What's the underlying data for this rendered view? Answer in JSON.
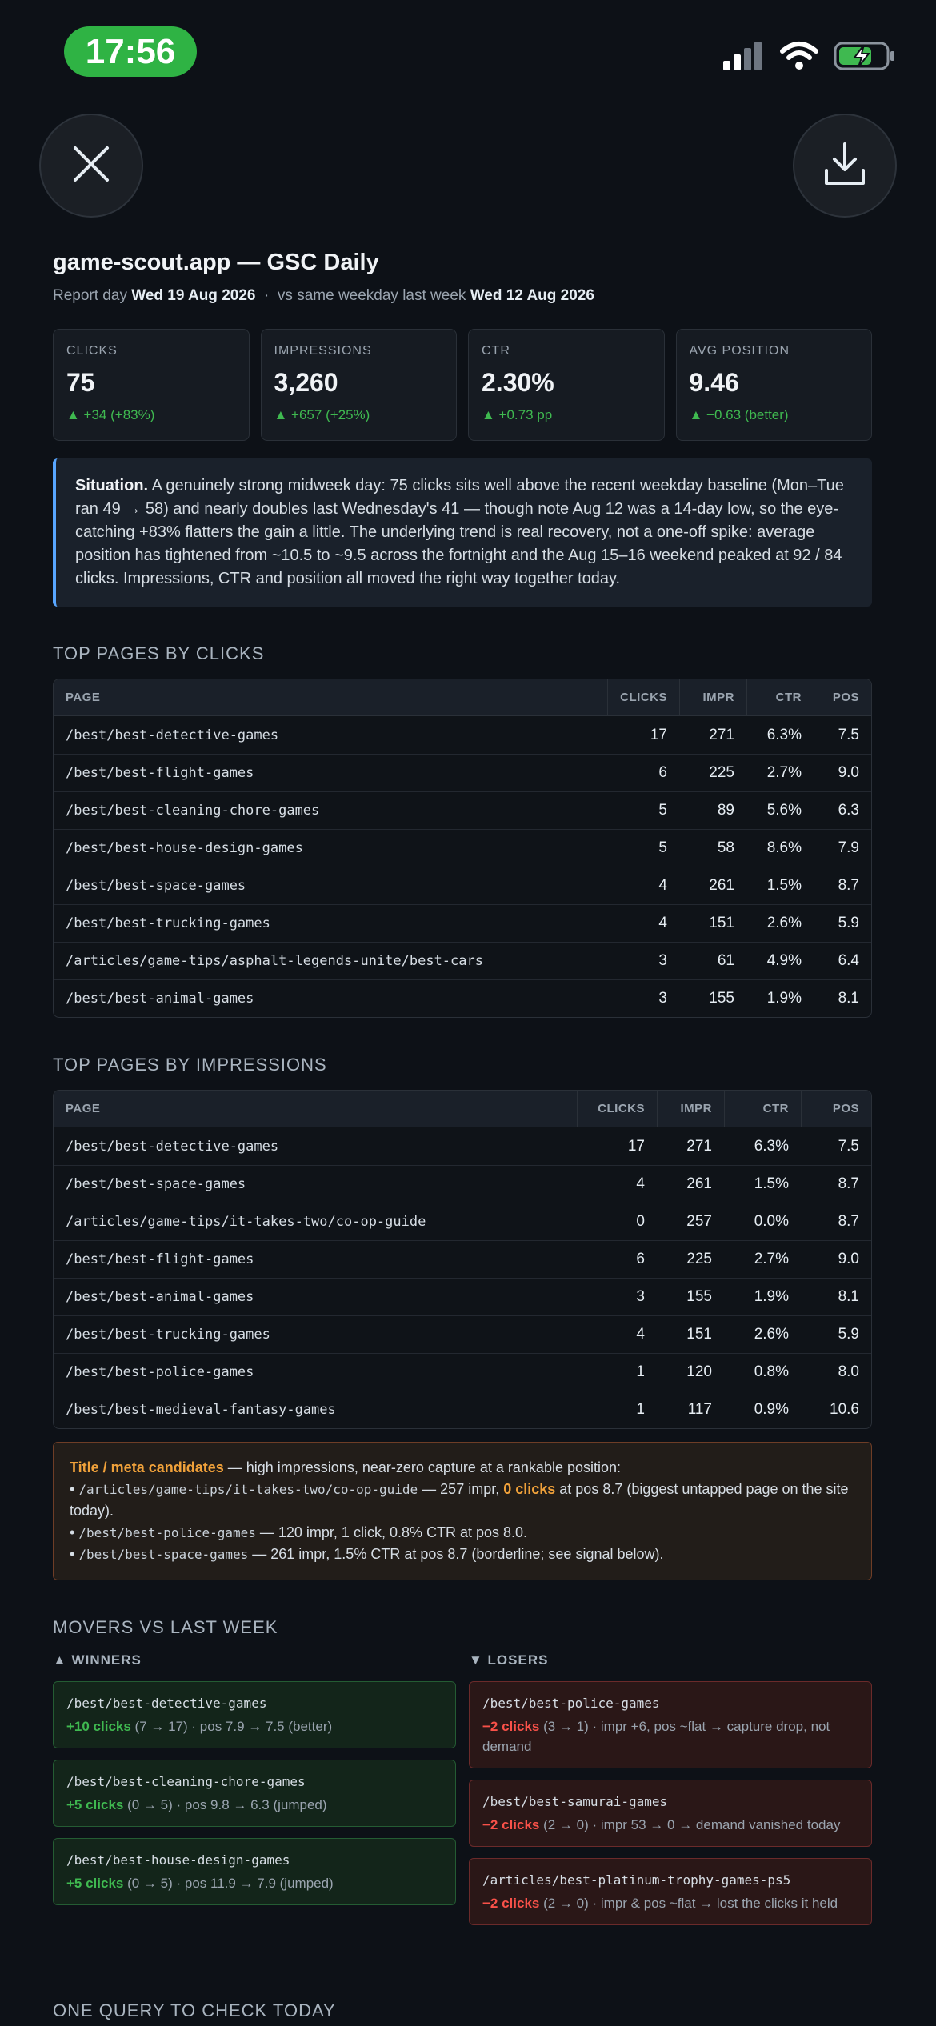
{
  "status_bar": {
    "time": "17:56"
  },
  "header": {
    "title": "game-scout.app — GSC Daily",
    "report_day_label": "Report day",
    "report_day": "Wed 19 Aug 2026",
    "sep": "·",
    "compare_label": "vs same weekday last week",
    "compare_day": "Wed 12 Aug 2026"
  },
  "kpis": [
    {
      "label": "CLICKS",
      "value": "75",
      "delta": "▲ +34  (+83%)"
    },
    {
      "label": "IMPRESSIONS",
      "value": "3,260",
      "delta": "▲ +657  (+25%)"
    },
    {
      "label": "CTR",
      "value": "2.30%",
      "delta": "▲ +0.73 pp"
    },
    {
      "label": "AVG POSITION",
      "value": "9.46",
      "delta": "▲ −0.63  (better)"
    }
  ],
  "situation": {
    "lead": "Situation.",
    "text": " A genuinely strong midweek day: 75 clicks sits well above the recent weekday baseline (Mon–Tue ran 49 → 58) and nearly doubles last Wednesday's 41 — though note Aug 12 was a 14-day low, so the eye-catching +83% flatters the gain a little. The underlying trend is real recovery, not a one-off spike: average position has tightened from ~10.5 to ~9.5 across the fortnight and the Aug 15–16 weekend peaked at 92 / 84 clicks. Impressions, CTR and position all moved the right way together today."
  },
  "top_clicks": {
    "heading": "TOP PAGES BY CLICKS",
    "columns": [
      "PAGE",
      "CLICKS",
      "IMPR",
      "CTR",
      "POS"
    ],
    "rows": [
      [
        "/best/best-detective-games",
        "17",
        "271",
        "6.3%",
        "7.5"
      ],
      [
        "/best/best-flight-games",
        "6",
        "225",
        "2.7%",
        "9.0"
      ],
      [
        "/best/best-cleaning-chore-games",
        "5",
        "89",
        "5.6%",
        "6.3"
      ],
      [
        "/best/best-house-design-games",
        "5",
        "58",
        "8.6%",
        "7.9"
      ],
      [
        "/best/best-space-games",
        "4",
        "261",
        "1.5%",
        "8.7"
      ],
      [
        "/best/best-trucking-games",
        "4",
        "151",
        "2.6%",
        "5.9"
      ],
      [
        "/articles/game-tips/asphalt-legends-unite/best-cars",
        "3",
        "61",
        "4.9%",
        "6.4"
      ],
      [
        "/best/best-animal-games",
        "3",
        "155",
        "1.9%",
        "8.1"
      ]
    ]
  },
  "top_impr": {
    "heading": "TOP PAGES BY IMPRESSIONS",
    "columns": [
      "PAGE",
      "CLICKS",
      "IMPR",
      "CTR",
      "POS"
    ],
    "rows": [
      [
        "/best/best-detective-games",
        "17",
        "271",
        "6.3%",
        "7.5"
      ],
      [
        "/best/best-space-games",
        "4",
        "261",
        "1.5%",
        "8.7"
      ],
      [
        "/articles/game-tips/it-takes-two/co-op-guide",
        "0",
        "257",
        "0.0%",
        "8.7"
      ],
      [
        "/best/best-flight-games",
        "6",
        "225",
        "2.7%",
        "9.0"
      ],
      [
        "/best/best-animal-games",
        "3",
        "155",
        "1.9%",
        "8.1"
      ],
      [
        "/best/best-trucking-games",
        "4",
        "151",
        "2.6%",
        "5.9"
      ],
      [
        "/best/best-police-games",
        "1",
        "120",
        "0.8%",
        "8.0"
      ],
      [
        "/best/best-medieval-fantasy-games",
        "1",
        "117",
        "0.9%",
        "10.6"
      ]
    ]
  },
  "candidates": {
    "title": "Title / meta candidates",
    "intro": " — high impressions, near-zero capture at a rankable position:",
    "bullet": "•",
    "item1_path": "/articles/game-tips/it-takes-two/co-op-guide",
    "item1_a": " — 257 impr, ",
    "item1_hl": "0 clicks",
    "item1_b": " at pos 8.7 (biggest untapped page on the site today).",
    "item2_path": "/best/best-police-games",
    "item2_text": " — 120 impr, 1 click, 0.8% CTR at pos 8.0.",
    "item3_path": "/best/best-space-games",
    "item3_text": " — 261 impr, 1.5% CTR at pos 8.7 (borderline; see signal below)."
  },
  "movers": {
    "heading": "MOVERS VS LAST WEEK",
    "winners_label": "▲ WINNERS",
    "losers_label": "▼ LOSERS",
    "winners": [
      {
        "path": "/best/best-detective-games",
        "hl": "+10 clicks",
        "detail": " (7 → 17) · pos 7.9 → 7.5 (better)"
      },
      {
        "path": "/best/best-cleaning-chore-games",
        "hl": "+5 clicks",
        "detail": " (0 → 5) · pos 9.8 → 6.3 (jumped)"
      },
      {
        "path": "/best/best-house-design-games",
        "hl": "+5 clicks",
        "detail": " (0 → 5) · pos 11.9 → 7.9 (jumped)"
      }
    ],
    "losers": [
      {
        "path": "/best/best-police-games",
        "hl": "−2 clicks",
        "detail": " (3 → 1) · impr +6, pos ~flat → capture drop, not demand"
      },
      {
        "path": "/best/best-samurai-games",
        "hl": "−2 clicks",
        "detail": " (2 → 0) · impr 53 → 0 → demand vanished today"
      },
      {
        "path": "/articles/best-platinum-trophy-games-ps5",
        "hl": "−2 clicks",
        "detail": " (2 → 0) · impr & pos ~flat → lost the clicks it held"
      }
    ]
  },
  "next_section": {
    "heading": "ONE QUERY TO CHECK TODAY"
  },
  "icons": {
    "close": "close-icon",
    "download": "download-icon",
    "signal": "cellular-signal-icon",
    "wifi": "wifi-icon",
    "battery": "battery-charging-icon"
  },
  "colors": {
    "accent_green": "#3fb950",
    "accent_red": "#f85149",
    "accent_orange": "#f0a13a",
    "accent_blue": "#58a6ff",
    "time_pill": "#2fb344"
  }
}
